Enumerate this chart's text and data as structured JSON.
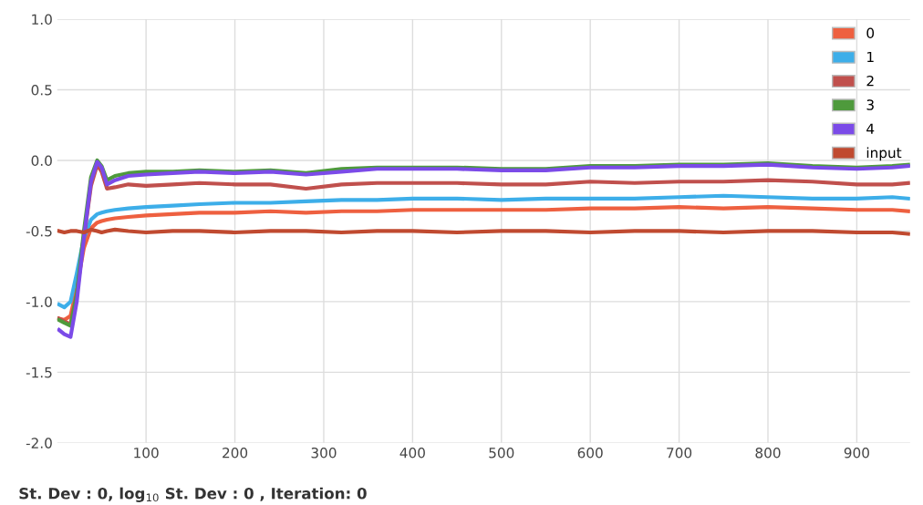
{
  "chart_data": {
    "type": "line",
    "x": [
      2,
      8,
      15,
      22,
      30,
      38,
      45,
      50,
      56,
      65,
      80,
      100,
      130,
      160,
      200,
      240,
      280,
      320,
      360,
      400,
      450,
      500,
      550,
      600,
      650,
      700,
      750,
      800,
      850,
      900,
      940,
      958
    ],
    "series": [
      {
        "name": "0",
        "color": "#ee6040",
        "values": [
          -1.12,
          -1.13,
          -1.1,
          -0.9,
          -0.62,
          -0.48,
          -0.44,
          -0.43,
          -0.42,
          -0.41,
          -0.4,
          -0.39,
          -0.38,
          -0.37,
          -0.37,
          -0.36,
          -0.37,
          -0.36,
          -0.36,
          -0.35,
          -0.35,
          -0.35,
          -0.35,
          -0.34,
          -0.34,
          -0.33,
          -0.34,
          -0.33,
          -0.34,
          -0.35,
          -0.35,
          -0.36
        ]
      },
      {
        "name": "1",
        "color": "#3daee9",
        "values": [
          -1.02,
          -1.04,
          -1.0,
          -0.8,
          -0.55,
          -0.42,
          -0.38,
          -0.37,
          -0.36,
          -0.35,
          -0.34,
          -0.33,
          -0.32,
          -0.31,
          -0.3,
          -0.3,
          -0.29,
          -0.28,
          -0.28,
          -0.27,
          -0.27,
          -0.28,
          -0.27,
          -0.27,
          -0.27,
          -0.26,
          -0.25,
          -0.26,
          -0.27,
          -0.27,
          -0.26,
          -0.27
        ]
      },
      {
        "name": "2",
        "color": "#c0504d",
        "values": [
          -1.12,
          -1.14,
          -1.16,
          -0.95,
          -0.55,
          -0.18,
          -0.03,
          -0.08,
          -0.2,
          -0.19,
          -0.17,
          -0.18,
          -0.17,
          -0.16,
          -0.17,
          -0.17,
          -0.2,
          -0.17,
          -0.16,
          -0.16,
          -0.16,
          -0.17,
          -0.17,
          -0.15,
          -0.16,
          -0.15,
          -0.15,
          -0.14,
          -0.15,
          -0.17,
          -0.17,
          -0.16
        ]
      },
      {
        "name": "3",
        "color": "#4e9a3c",
        "values": [
          -1.13,
          -1.15,
          -1.17,
          -0.95,
          -0.5,
          -0.12,
          0.0,
          -0.04,
          -0.14,
          -0.11,
          -0.09,
          -0.08,
          -0.08,
          -0.07,
          -0.08,
          -0.07,
          -0.09,
          -0.06,
          -0.05,
          -0.05,
          -0.05,
          -0.06,
          -0.06,
          -0.04,
          -0.04,
          -0.03,
          -0.03,
          -0.02,
          -0.04,
          -0.05,
          -0.04,
          -0.03
        ]
      },
      {
        "name": "4",
        "color": "#7b4be8",
        "values": [
          -1.2,
          -1.23,
          -1.25,
          -1.0,
          -0.55,
          -0.15,
          -0.01,
          -0.05,
          -0.17,
          -0.14,
          -0.11,
          -0.1,
          -0.09,
          -0.08,
          -0.09,
          -0.08,
          -0.1,
          -0.08,
          -0.06,
          -0.06,
          -0.06,
          -0.07,
          -0.07,
          -0.05,
          -0.05,
          -0.04,
          -0.04,
          -0.03,
          -0.05,
          -0.06,
          -0.05,
          -0.04
        ]
      },
      {
        "name": "input",
        "color": "#c04a30",
        "values": [
          -0.5,
          -0.51,
          -0.5,
          -0.5,
          -0.51,
          -0.49,
          -0.5,
          -0.51,
          -0.5,
          -0.49,
          -0.5,
          -0.51,
          -0.5,
          -0.5,
          -0.51,
          -0.5,
          -0.5,
          -0.51,
          -0.5,
          -0.5,
          -0.51,
          -0.5,
          -0.5,
          -0.51,
          -0.5,
          -0.5,
          -0.51,
          -0.5,
          -0.5,
          -0.51,
          -0.51,
          -0.52
        ]
      }
    ],
    "xlim": [
      0,
      960
    ],
    "xticks": [
      100,
      200,
      300,
      400,
      500,
      600,
      700,
      800,
      900
    ],
    "ylim": [
      -2.0,
      1.0
    ],
    "yticks": [
      {
        "value": -2.0,
        "label": "-2.0"
      },
      {
        "value": -1.5,
        "label": "-1.5"
      },
      {
        "value": -1.0,
        "label": "-1.0"
      },
      {
        "value": -0.5,
        "label": "-0.5"
      },
      {
        "value": 0.0,
        "label": "0.0"
      },
      {
        "value": 0.5,
        "label": "0.5"
      },
      {
        "value": 1.0,
        "label": "1.0"
      }
    ],
    "grid": true,
    "legend": "top right",
    "line_style": "solid",
    "marker": "none",
    "annotations": [
      "St. Dev : 0, log$_{10}$ St. Dev : 0 , Iteration: 0"
    ]
  }
}
